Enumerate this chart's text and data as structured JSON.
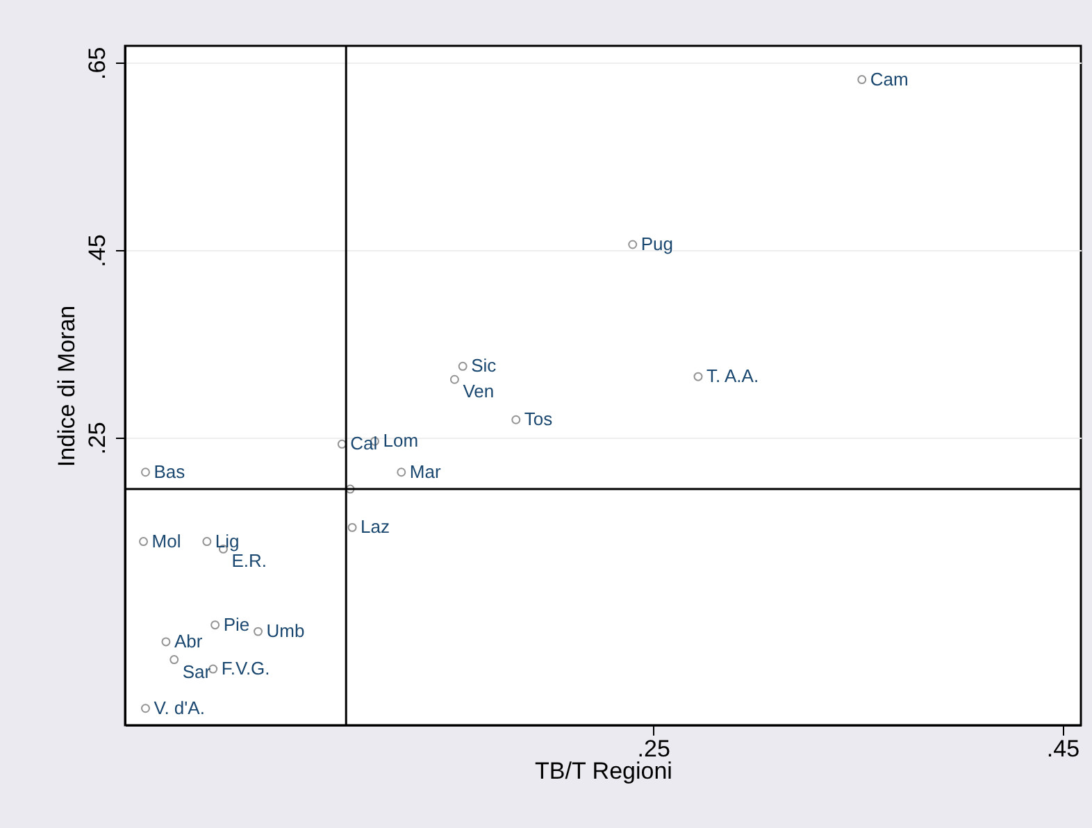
{
  "chart_data": {
    "type": "scatter",
    "xlabel": "TB/T Regioni",
    "ylabel": "Indice di Moran",
    "x": [
      0.352,
      0.24,
      0.157,
      0.153,
      0.272,
      0.183,
      0.098,
      0.114,
      0.127,
      0.102,
      0.103,
      0.002,
      0.001,
      0.032,
      0.04,
      0.036,
      0.057,
      0.012,
      0.016,
      0.035,
      0.002
    ],
    "series": [
      {
        "color": "#666666",
        "values": [
          0.632,
          0.456,
          0.326,
          0.312,
          0.315,
          0.269,
          0.243,
          0.246,
          0.213,
          0.195,
          0.154,
          0.213,
          0.139,
          0.139,
          0.131,
          0.05,
          0.043,
          0.032,
          0.013,
          0.003,
          -0.039
        ]
      }
    ],
    "annotations": [
      {
        "text": "Cam",
        "x": 0.352,
        "y": 0.632
      },
      {
        "text": "Pug",
        "x": 0.24,
        "y": 0.456
      },
      {
        "text": "Sic",
        "x": 0.157,
        "y": 0.326
      },
      {
        "text": "Ven",
        "x": 0.153,
        "y": 0.312
      },
      {
        "text": "T. A.A.",
        "x": 0.272,
        "y": 0.315
      },
      {
        "text": "Tos",
        "x": 0.183,
        "y": 0.269
      },
      {
        "text": "Cal",
        "x": 0.098,
        "y": 0.243
      },
      {
        "text": "Lom",
        "x": 0.114,
        "y": 0.246
      },
      {
        "text": "Mar",
        "x": 0.127,
        "y": 0.213
      },
      {
        "text": "Laz",
        "x": 0.103,
        "y": 0.154
      },
      {
        "text": "Bas",
        "x": 0.002,
        "y": 0.213
      },
      {
        "text": "Mol",
        "x": 0.001,
        "y": 0.139
      },
      {
        "text": "Lig",
        "x": 0.032,
        "y": 0.139
      },
      {
        "text": "E.R.",
        "x": 0.04,
        "y": 0.131
      },
      {
        "text": "Pie",
        "x": 0.036,
        "y": 0.05
      },
      {
        "text": "Umb",
        "x": 0.057,
        "y": 0.043
      },
      {
        "text": "Abr",
        "x": 0.012,
        "y": 0.032
      },
      {
        "text": "Sar",
        "x": 0.016,
        "y": 0.013
      },
      {
        "text": "F.V.G.",
        "x": 0.035,
        "y": 0.003
      },
      {
        "text": "V. d'A.",
        "x": 0.002,
        "y": -0.039
      }
    ],
    "ref_lines": [
      {
        "axis": "x",
        "value": 0.1,
        "color": "#000000"
      },
      {
        "axis": "y",
        "value": 0.195,
        "color": "#000000"
      }
    ],
    "xlim": [
      -0.008,
      0.459
    ],
    "xticks": [
      {
        "value": 0.25,
        "label": ".25"
      },
      {
        "value": 0.45,
        "label": ".45"
      }
    ],
    "ylim": [
      -0.057,
      0.668
    ],
    "yticks": [
      {
        "value": 0.25,
        "label": ".25"
      },
      {
        "value": 0.45,
        "label": ".45"
      },
      {
        "value": 0.65,
        "label": ".65"
      }
    ],
    "grid": "y",
    "marker": "circle"
  }
}
